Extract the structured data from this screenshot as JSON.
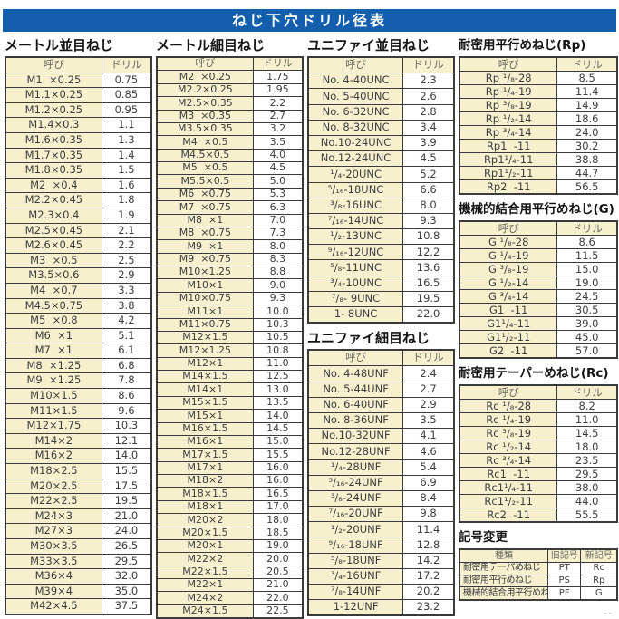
{
  "title": "ねじ下穴ドリル径表",
  "colors": {
    "title_bar": "#135fae",
    "cream": "#f6f0cf",
    "border": "#3b3b3b",
    "header_text": "#68685e"
  },
  "column_headers": {
    "name": "呼び",
    "drill": "ドリル"
  },
  "tables": [
    {
      "title": "メートル並目ねじ",
      "rows": [
        [
          "M1  ×0.25",
          "0.75"
        ],
        [
          "M1.1×0.25",
          "0.85"
        ],
        [
          "M1.2×0.25",
          "0.95"
        ],
        [
          "M1.4×0.3",
          "1.1"
        ],
        [
          "M1.6×0.35",
          "1.3"
        ],
        [
          "M1.7×0.35",
          "1.4"
        ],
        [
          "M1.8×0.35",
          "1.5"
        ],
        [
          "M2  ×0.4",
          "1.6"
        ],
        [
          "M2.2×0.45",
          "1.8"
        ],
        [
          "M2.3×0.4",
          "1.9"
        ],
        [
          "M2.5×0.45",
          "2.1"
        ],
        [
          "M2.6×0.45",
          "2.2"
        ],
        [
          "M3  ×0.5",
          "2.5"
        ],
        [
          "M3.5×0.6",
          "2.9"
        ],
        [
          "M4  ×0.7",
          "3.3"
        ],
        [
          "M4.5×0.75",
          "3.8"
        ],
        [
          "M5  ×0.8",
          "4.2"
        ],
        [
          "M6  ×1",
          "5.1"
        ],
        [
          "M7  ×1",
          "6.1"
        ],
        [
          "M8  ×1.25",
          "6.8"
        ],
        [
          "M9  ×1.25",
          "7.8"
        ],
        [
          "M10×1.5",
          "8.6"
        ],
        [
          "M11×1.5",
          "9.6"
        ],
        [
          "M12×1.75",
          "10.3"
        ],
        [
          "M14×2",
          "12.1"
        ],
        [
          "M16×2",
          "14.0"
        ],
        [
          "M18×2.5",
          "15.5"
        ],
        [
          "M20×2.5",
          "17.5"
        ],
        [
          "M22×2.5",
          "19.5"
        ],
        [
          "M24×3",
          "21.0"
        ],
        [
          "M27×3",
          "24.0"
        ],
        [
          "M30×3.5",
          "26.5"
        ],
        [
          "M33×3.5",
          "29.5"
        ],
        [
          "M36×4",
          "32.0"
        ],
        [
          "M39×4",
          "35.0"
        ],
        [
          "M42×4.5",
          "37.5"
        ]
      ]
    },
    {
      "title": "メートル細目ねじ",
      "rows": [
        [
          "M2  ×0.25",
          "1.75"
        ],
        [
          "M2.2×0.25",
          "1.95"
        ],
        [
          "M2.5×0.35",
          "2.2"
        ],
        [
          "M3  ×0.35",
          "2.7"
        ],
        [
          "M3.5×0.35",
          "3.2"
        ],
        [
          "M4  ×0.5",
          "3.5"
        ],
        [
          "M4.5×0.5",
          "4.0"
        ],
        [
          "M5  ×0.5",
          "4.5"
        ],
        [
          "M5.5×0.5",
          "5.0"
        ],
        [
          "M6  ×0.75",
          "5.3"
        ],
        [
          "M7  ×0.75",
          "6.3"
        ],
        [
          "M8  ×1",
          "7.0"
        ],
        [
          "M8  ×0.75",
          "7.3"
        ],
        [
          "M9  ×1",
          "8.0"
        ],
        [
          "M9  ×0.75",
          "8.3"
        ],
        [
          "M10×1.25",
          "8.8"
        ],
        [
          "M10×1",
          "9.0"
        ],
        [
          "M10×0.75",
          "9.3"
        ],
        [
          "M11×1",
          "10.0"
        ],
        [
          "M11×0.75",
          "10.3"
        ],
        [
          "M12×1.5",
          "10.5"
        ],
        [
          "M12×1.25",
          "10.8"
        ],
        [
          "M12×1",
          "11.0"
        ],
        [
          "M14×1.5",
          "12.5"
        ],
        [
          "M14×1",
          "13.0"
        ],
        [
          "M15×1.5",
          "13.5"
        ],
        [
          "M15×1",
          "14.0"
        ],
        [
          "M16×1.5",
          "14.5"
        ],
        [
          "M16×1",
          "15.0"
        ],
        [
          "M17×1.5",
          "15.5"
        ],
        [
          "M17×1",
          "16.0"
        ],
        [
          "M18×2",
          "16.0"
        ],
        [
          "M18×1.5",
          "16.5"
        ],
        [
          "M18×1",
          "17.0"
        ],
        [
          "M20×2",
          "18.0"
        ],
        [
          "M20×1.5",
          "18.5"
        ],
        [
          "M20×1",
          "19.0"
        ],
        [
          "M22×2",
          "20.0"
        ],
        [
          "M22×1.5",
          "20.5"
        ],
        [
          "M22×1",
          "21.0"
        ],
        [
          "M24×2",
          "22.0"
        ],
        [
          "M24×1.5",
          "22.5"
        ]
      ]
    },
    {
      "title": "ユニファイ並目ねじ",
      "rows": [
        [
          "No. 4-40UNC",
          "2.3"
        ],
        [
          "No. 5-40UNC",
          "2.6"
        ],
        [
          "No. 6-32UNC",
          "2.8"
        ],
        [
          "No. 8-32UNC",
          "3.4"
        ],
        [
          "No.10-24UNC",
          "3.9"
        ],
        [
          "No.12-24UNC",
          "4.5"
        ],
        [
          "¹/₄-20UNC",
          "5.2"
        ],
        [
          "⁵/₁₆-18UNC",
          "6.6"
        ],
        [
          "³/₈-16UNC",
          "8.0"
        ],
        [
          "⁷/₁₆-14UNC",
          "9.3"
        ],
        [
          "¹/₂-13UNC",
          "10.8"
        ],
        [
          "⁹/₁₆-12UNC",
          "12.2"
        ],
        [
          "⁵/₈-11UNC",
          "13.6"
        ],
        [
          "³/₄-10UNC",
          "16.5"
        ],
        [
          "⁷/₈- 9UNC",
          "19.5"
        ],
        [
          "1- 8UNC",
          "22.0"
        ]
      ]
    },
    {
      "title": "ユニファイ細目ねじ",
      "rows": [
        [
          "No. 4-48UNF",
          "2.4"
        ],
        [
          "No. 5-44UNF",
          "2.7"
        ],
        [
          "No. 6-40UNF",
          "2.9"
        ],
        [
          "No. 8-36UNF",
          "3.5"
        ],
        [
          "No.10-32UNF",
          "4.1"
        ],
        [
          "No.12-28UNF",
          "4.6"
        ],
        [
          "¹/₄-28UNF",
          "5.4"
        ],
        [
          "⁵/₁₆-24UNF",
          "6.9"
        ],
        [
          "³/₈-24UNF",
          "8.4"
        ],
        [
          "⁷/₁₆-20UNF",
          "9.8"
        ],
        [
          "¹/₂-20UNF",
          "11.4"
        ],
        [
          "⁹/₁₆-18UNF",
          "12.8"
        ],
        [
          "⁵/₈-18UNF",
          "14.2"
        ],
        [
          "³/₄-16UNF",
          "17.2"
        ],
        [
          "⁷/₈-14UNF",
          "20.2"
        ],
        [
          "1-12UNF",
          "23.2"
        ]
      ]
    },
    {
      "title": "耐密用平行めねじ(Rp)",
      "rows": [
        [
          "Rp ¹/₈-28",
          "8.5"
        ],
        [
          "Rp ¹/₄-19",
          "11.4"
        ],
        [
          "Rp ³/₈-19",
          "14.9"
        ],
        [
          "Rp ¹/₂-14",
          "18.6"
        ],
        [
          "Rp ³/₄-14",
          "24.0"
        ],
        [
          "Rp1  -11",
          "30.2"
        ],
        [
          "Rp1¹/₄-11",
          "38.8"
        ],
        [
          "Rp1¹/₂-11",
          "44.7"
        ],
        [
          "Rp2  -11",
          "56.5"
        ]
      ]
    },
    {
      "title": "機械的結合用平行めねじ(G)",
      "rows": [
        [
          "G ¹/₈-28",
          "8.6"
        ],
        [
          "G ¹/₄-19",
          "11.5"
        ],
        [
          "G ³/₈-19",
          "15.0"
        ],
        [
          "G ¹/₂-14",
          "19.0"
        ],
        [
          "G ³/₄-14",
          "24.5"
        ],
        [
          "G1  -11",
          "30.5"
        ],
        [
          "G1¹/₄-11",
          "39.0"
        ],
        [
          "G1¹/₂-11",
          "45.0"
        ],
        [
          "G2  -11",
          "57.0"
        ]
      ]
    },
    {
      "title": "耐密用テーパーめねじ(Rc)",
      "rows": [
        [
          "Rc ¹/₈-28",
          "8.2"
        ],
        [
          "Rc ¹/₄-19",
          "11.0"
        ],
        [
          "Rc ³/₈-19",
          "14.5"
        ],
        [
          "Rc ¹/₂-14",
          "18.0"
        ],
        [
          "Rc ³/₄-14",
          "23.5"
        ],
        [
          "Rc1  -11",
          "29.5"
        ],
        [
          "Rc1¹/₄-11",
          "38.0"
        ],
        [
          "Rc1¹/₂-11",
          "44.0"
        ],
        [
          "Rc2  -11",
          "55.5"
        ]
      ]
    }
  ],
  "symbol_change": {
    "title": "記号変更",
    "headers": [
      "種類",
      "旧記号",
      "新記号"
    ],
    "rows": [
      [
        "耐密用テーパめねじ",
        "PT",
        "Rc"
      ],
      [
        "耐密用平行めねじ",
        "PS",
        "Rp"
      ],
      [
        "機械的結合用平行めねじ",
        "PF",
        "G"
      ]
    ]
  },
  "footer_fragment": "--"
}
